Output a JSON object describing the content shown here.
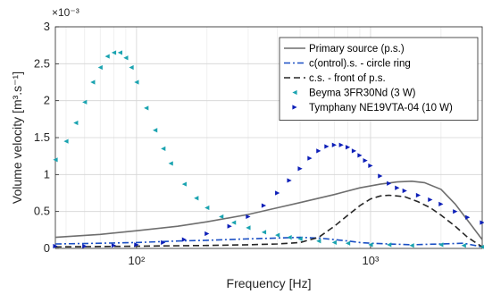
{
  "chart_data": {
    "type": "line",
    "xlabel": "Frequency [Hz]",
    "ylabel": "Volume velocity [m³.s⁻¹]",
    "x_scale": "log",
    "xlim": [
      45,
      3000
    ],
    "ylim": [
      0,
      3
    ],
    "y_multiplier": "×10⁻³",
    "x_ticks": [
      100,
      1000
    ],
    "x_tick_labels": [
      "10²",
      "10³"
    ],
    "y_ticks": [
      0,
      0.5,
      1,
      1.5,
      2,
      2.5,
      3
    ],
    "y_tick_labels": [
      "0",
      "0.5",
      "1",
      "1.5",
      "2",
      "2.5",
      "3"
    ],
    "grid": true,
    "legend_position": "top-right",
    "series": [
      {
        "name": "Primary source (p.s.)",
        "style": "solid",
        "color": "#6e6e6e",
        "x": [
          45,
          70,
          100,
          150,
          200,
          300,
          400,
          500,
          700,
          900,
          1100,
          1300,
          1500,
          1700,
          2000,
          2300,
          2600,
          3000
        ],
        "y": [
          0.15,
          0.19,
          0.24,
          0.3,
          0.36,
          0.46,
          0.55,
          0.62,
          0.73,
          0.82,
          0.87,
          0.9,
          0.91,
          0.89,
          0.8,
          0.6,
          0.38,
          0.12
        ]
      },
      {
        "name": "c(ontrol).s. - circle ring",
        "style": "dashdot",
        "color": "#1a4fc4",
        "x": [
          45,
          70,
          100,
          150,
          200,
          300,
          400,
          500,
          600,
          700,
          800,
          900,
          1000,
          1200,
          1500,
          2000,
          2500,
          3000
        ],
        "y": [
          0.06,
          0.07,
          0.08,
          0.1,
          0.11,
          0.13,
          0.14,
          0.15,
          0.14,
          0.12,
          0.1,
          0.08,
          0.07,
          0.06,
          0.05,
          0.06,
          0.07,
          0.02
        ]
      },
      {
        "name": "c.s. - front of p.s.",
        "style": "dashed",
        "color": "#262626",
        "x": [
          45,
          100,
          200,
          300,
          400,
          500,
          600,
          700,
          800,
          900,
          1000,
          1100,
          1200,
          1400,
          1600,
          1800,
          2000,
          2300,
          2600,
          3000
        ],
        "y": [
          0.02,
          0.03,
          0.04,
          0.05,
          0.06,
          0.08,
          0.15,
          0.3,
          0.45,
          0.58,
          0.67,
          0.71,
          0.72,
          0.7,
          0.63,
          0.55,
          0.45,
          0.3,
          0.15,
          0.02
        ]
      },
      {
        "name": "Beyma 3FR30Nd (3 W)",
        "style": "marker-left-triangle",
        "color": "#1aa3b0",
        "x": [
          45,
          50,
          55,
          60,
          65,
          70,
          75,
          80,
          85,
          90,
          95,
          100,
          110,
          120,
          130,
          140,
          160,
          180,
          200,
          230,
          260,
          300,
          350,
          400,
          450,
          500,
          600,
          700,
          800,
          1000,
          1200,
          1500,
          2000,
          2500,
          3000
        ],
        "y": [
          1.2,
          1.45,
          1.7,
          1.98,
          2.25,
          2.45,
          2.6,
          2.65,
          2.65,
          2.58,
          2.45,
          2.25,
          1.9,
          1.6,
          1.35,
          1.15,
          0.87,
          0.68,
          0.55,
          0.43,
          0.35,
          0.28,
          0.22,
          0.18,
          0.15,
          0.13,
          0.1,
          0.08,
          0.07,
          0.05,
          0.05,
          0.04,
          0.05,
          0.04,
          0.02
        ]
      },
      {
        "name": "Tymphany NE19VTA-04 (10 W)",
        "style": "marker-right-triangle",
        "color": "#0d1fb8",
        "x": [
          45,
          60,
          80,
          100,
          130,
          160,
          200,
          250,
          300,
          350,
          400,
          450,
          500,
          550,
          600,
          650,
          700,
          750,
          800,
          850,
          900,
          950,
          1000,
          1100,
          1200,
          1300,
          1400,
          1600,
          1800,
          2000,
          2300,
          2600,
          3000
        ],
        "y": [
          0.03,
          0.03,
          0.04,
          0.05,
          0.08,
          0.12,
          0.2,
          0.3,
          0.43,
          0.58,
          0.75,
          0.92,
          1.08,
          1.22,
          1.32,
          1.38,
          1.4,
          1.4,
          1.37,
          1.32,
          1.26,
          1.19,
          1.12,
          0.98,
          0.88,
          0.82,
          0.78,
          0.72,
          0.66,
          0.6,
          0.5,
          0.42,
          0.35
        ]
      }
    ]
  }
}
